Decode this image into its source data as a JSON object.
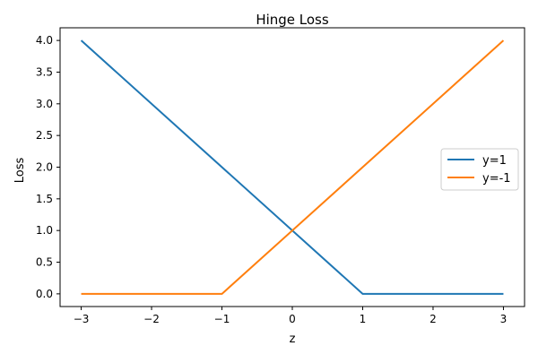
{
  "chart_data": {
    "type": "line",
    "title": "Hinge Loss",
    "xlabel": "z",
    "ylabel": "Loss",
    "xlim": [
      -3.3,
      3.3
    ],
    "ylim": [
      -0.2,
      4.2
    ],
    "x_ticks": [
      -3,
      -2,
      -1,
      0,
      1,
      2,
      3
    ],
    "x_tick_labels": [
      "−3",
      "−2",
      "−1",
      "0",
      "1",
      "2",
      "3"
    ],
    "y_ticks": [
      0,
      0.5,
      1,
      1.5,
      2,
      2.5,
      3,
      3.5,
      4
    ],
    "y_tick_labels": [
      "0.0",
      "0.5",
      "1.0",
      "1.5",
      "2.0",
      "2.5",
      "3.0",
      "3.5",
      "4.0"
    ],
    "grid": false,
    "legend_position": "center-right",
    "series": [
      {
        "name": "y=1",
        "color": "#1f77b4",
        "x": [
          -3,
          1,
          3
        ],
        "y": [
          4,
          0,
          0
        ]
      },
      {
        "name": "y=-1",
        "color": "#ff7f0e",
        "x": [
          -3,
          -1,
          3
        ],
        "y": [
          0,
          0,
          4
        ]
      }
    ]
  }
}
